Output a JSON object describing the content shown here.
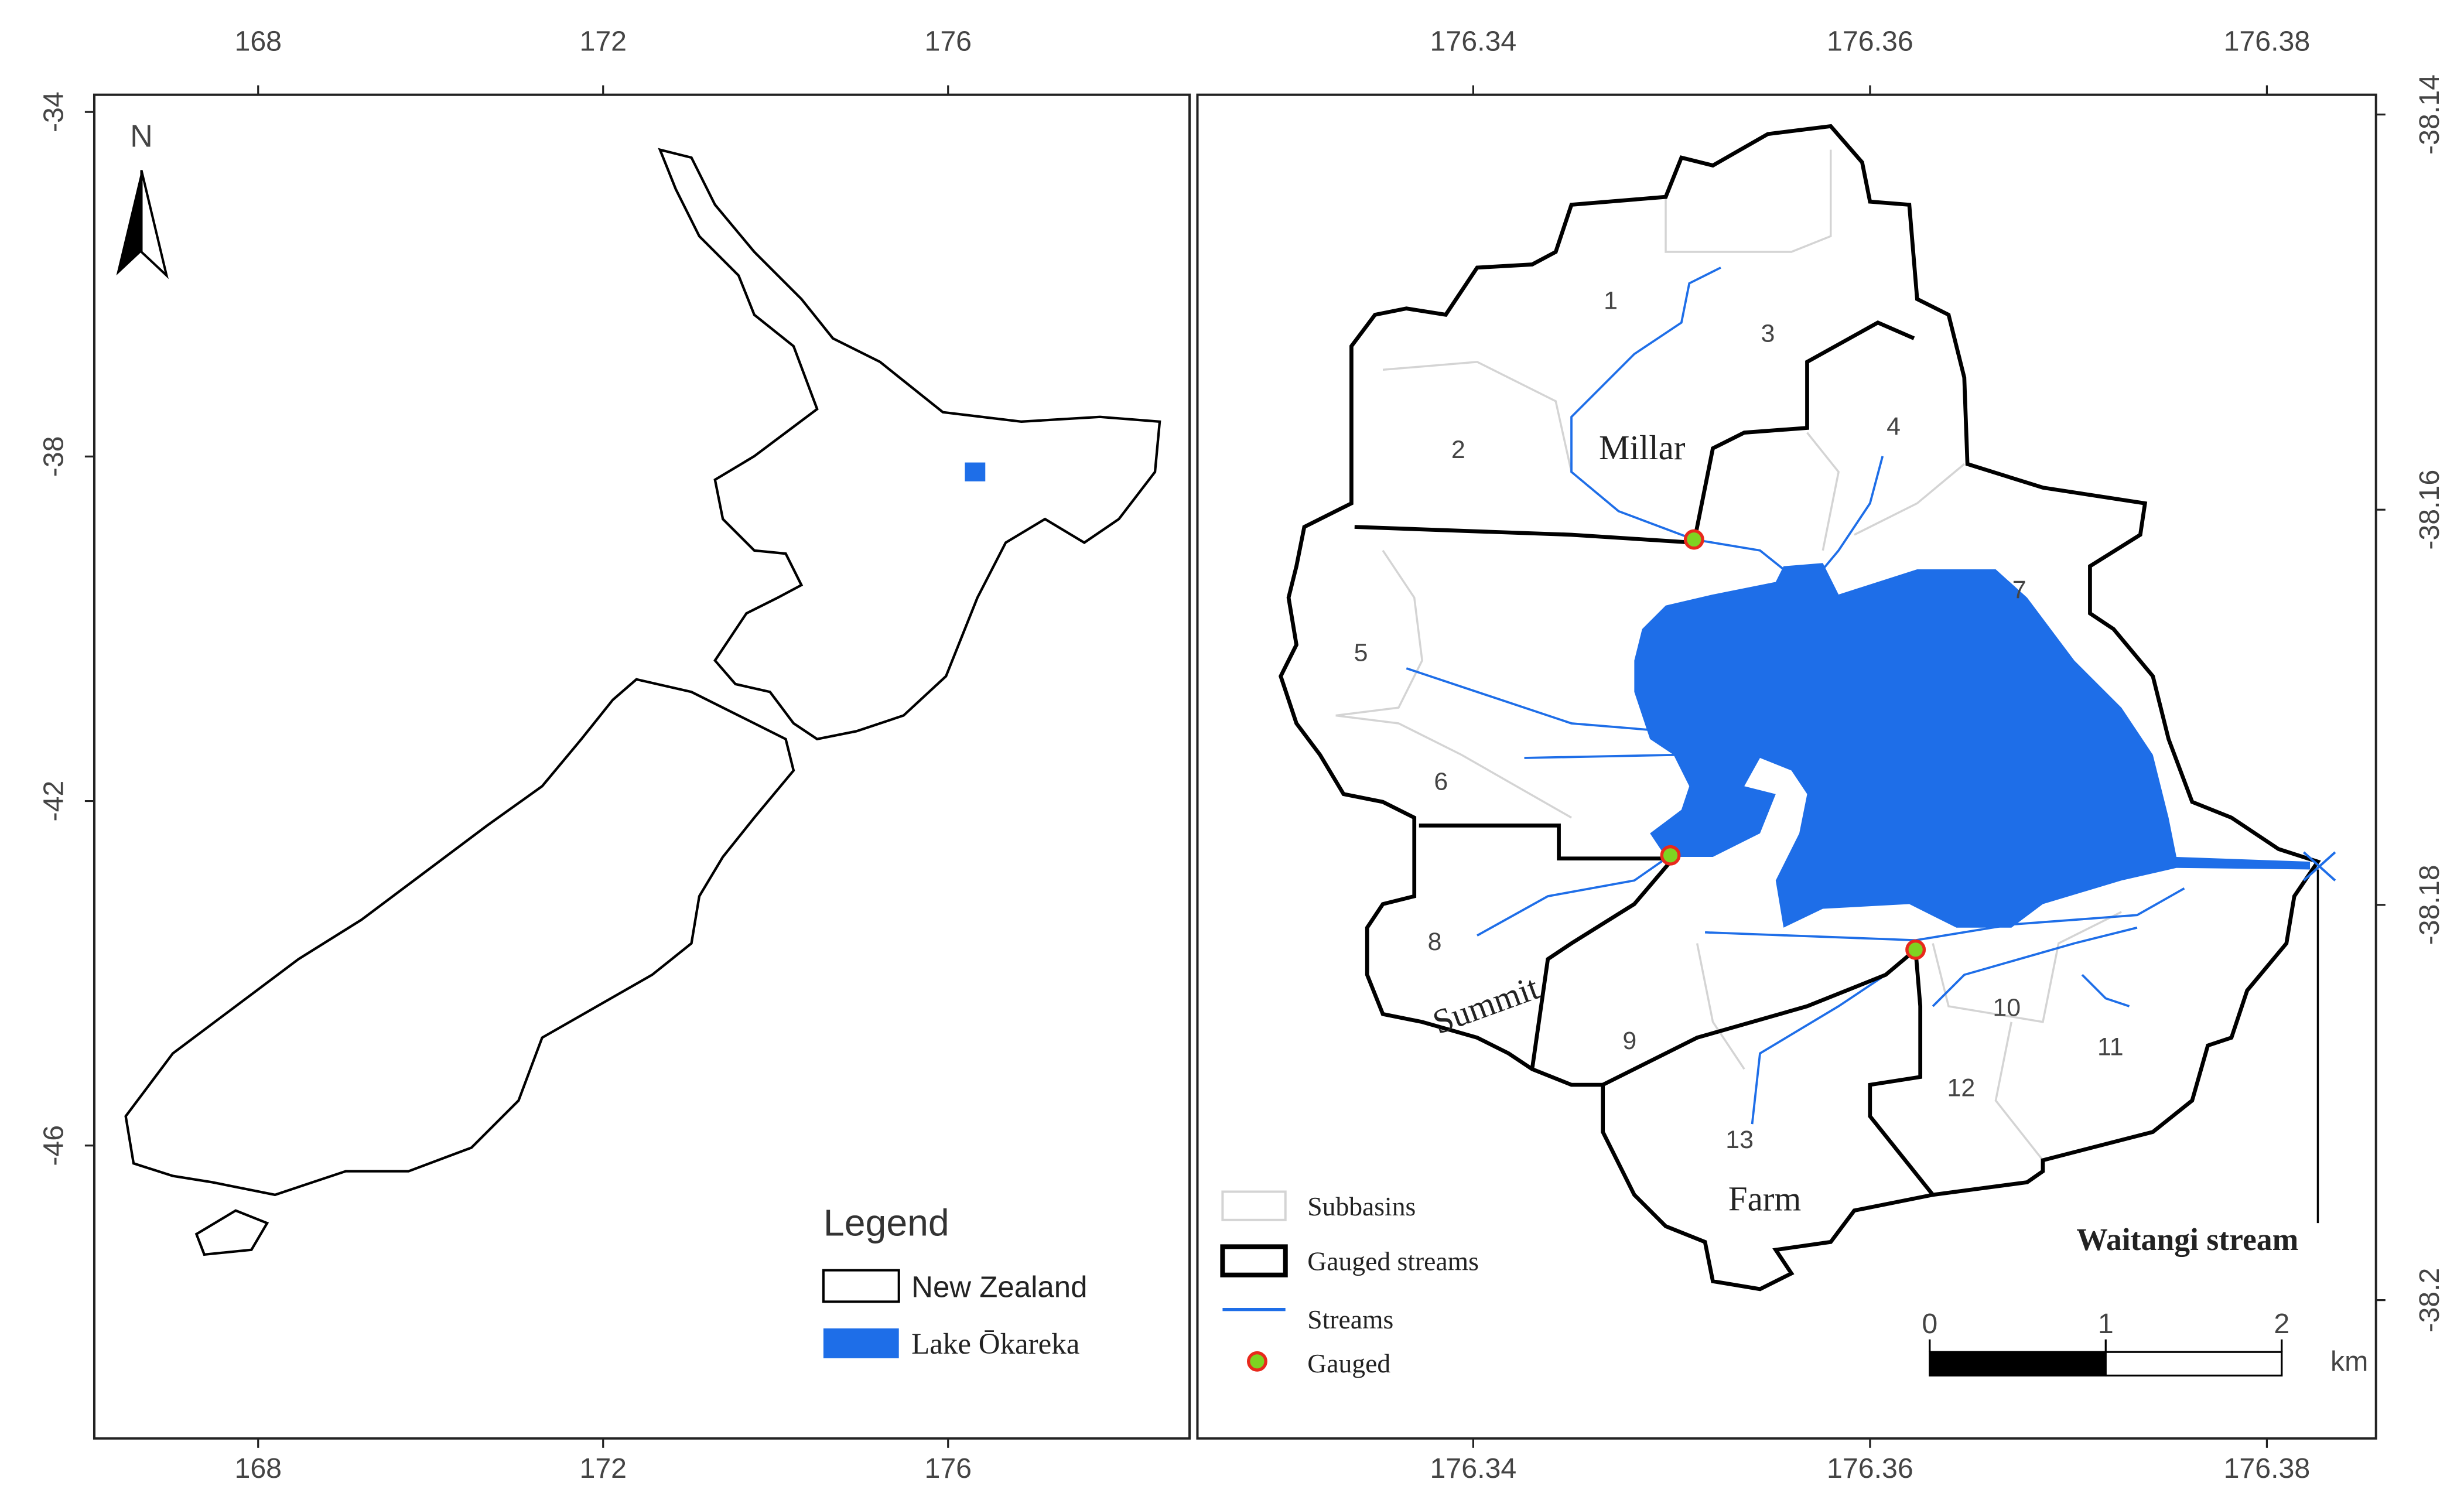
{
  "overview_map": {
    "xlim": [
      166.1,
      178.8
    ],
    "ylim": [
      -49.4,
      -33.8
    ],
    "xticks": [
      168,
      172,
      176
    ],
    "yticks": [
      -34,
      -38,
      -42,
      -46
    ],
    "north_arrow": "N",
    "legend": {
      "title": "Legend",
      "items": [
        "New Zealand",
        "Lake Ōkareka"
      ]
    }
  },
  "catchment_map": {
    "xlim": [
      176.3261,
      176.3855
    ],
    "ylim": [
      -38.207,
      -38.139
    ],
    "xticks": [
      176.34,
      176.36,
      176.38
    ],
    "yticks": [
      -38.14,
      -38.16,
      -38.18,
      -38.2
    ],
    "subbasins": [
      "1",
      "2",
      "3",
      "4",
      "5",
      "6",
      "7",
      "8",
      "9",
      "10",
      "11",
      "12",
      "13"
    ],
    "stream_names": [
      "Millar",
      "Summit",
      "Farm",
      "Waitangi stream"
    ],
    "legend": [
      "Subbasins",
      "Gauged streams",
      "Streams",
      "Gauged"
    ],
    "scale_bar": {
      "ticks": [
        0,
        1,
        2
      ],
      "unit": "km"
    }
  }
}
